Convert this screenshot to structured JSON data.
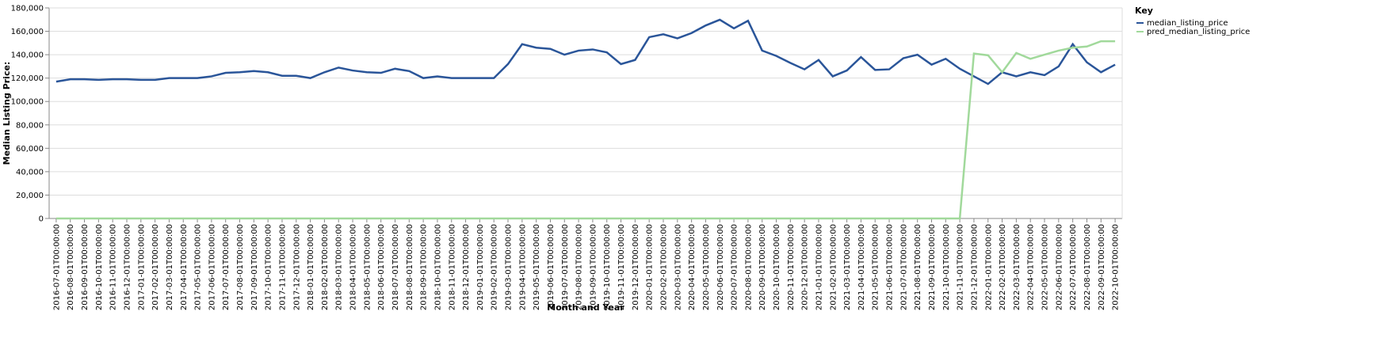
{
  "chart_data": {
    "type": "line",
    "x_label": "Month and Year",
    "y_label": "Median Listing Price:",
    "legend_title": "Key",
    "categories": [
      "2016-07-01T00:00:00",
      "2016-08-01T00:00:00",
      "2016-09-01T00:00:00",
      "2016-10-01T00:00:00",
      "2016-11-01T00:00:00",
      "2016-12-01T00:00:00",
      "2017-01-01T00:00:00",
      "2017-02-01T00:00:00",
      "2017-03-01T00:00:00",
      "2017-04-01T00:00:00",
      "2017-05-01T00:00:00",
      "2017-06-01T00:00:00",
      "2017-07-01T00:00:00",
      "2017-08-01T00:00:00",
      "2017-09-01T00:00:00",
      "2017-10-01T00:00:00",
      "2017-11-01T00:00:00",
      "2017-12-01T00:00:00",
      "2018-01-01T00:00:00",
      "2018-02-01T00:00:00",
      "2018-03-01T00:00:00",
      "2018-04-01T00:00:00",
      "2018-05-01T00:00:00",
      "2018-06-01T00:00:00",
      "2018-07-01T00:00:00",
      "2018-08-01T00:00:00",
      "2018-09-01T00:00:00",
      "2018-10-01T00:00:00",
      "2018-11-01T00:00:00",
      "2018-12-01T00:00:00",
      "2019-01-01T00:00:00",
      "2019-02-01T00:00:00",
      "2019-03-01T00:00:00",
      "2019-04-01T00:00:00",
      "2019-05-01T00:00:00",
      "2019-06-01T00:00:00",
      "2019-07-01T00:00:00",
      "2019-08-01T00:00:00",
      "2019-09-01T00:00:00",
      "2019-10-01T00:00:00",
      "2019-11-01T00:00:00",
      "2019-12-01T00:00:00",
      "2020-01-01T00:00:00",
      "2020-02-01T00:00:00",
      "2020-03-01T00:00:00",
      "2020-04-01T00:00:00",
      "2020-05-01T00:00:00",
      "2020-06-01T00:00:00",
      "2020-07-01T00:00:00",
      "2020-08-01T00:00:00",
      "2020-09-01T00:00:00",
      "2020-10-01T00:00:00",
      "2020-11-01T00:00:00",
      "2020-12-01T00:00:00",
      "2021-01-01T00:00:00",
      "2021-02-01T00:00:00",
      "2021-03-01T00:00:00",
      "2021-04-01T00:00:00",
      "2021-05-01T00:00:00",
      "2021-06-01T00:00:00",
      "2021-07-01T00:00:00",
      "2021-08-01T00:00:00",
      "2021-09-01T00:00:00",
      "2021-10-01T00:00:00",
      "2021-11-01T00:00:00",
      "2021-12-01T00:00:00",
      "2022-01-01T00:00:00",
      "2022-02-01T00:00:00",
      "2022-03-01T00:00:00",
      "2022-04-01T00:00:00",
      "2022-05-01T00:00:00",
      "2022-06-01T00:00:00",
      "2022-07-01T00:00:00",
      "2022-08-01T00:00:00",
      "2022-09-01T00:00:00",
      "2022-10-01T00:00:00"
    ],
    "series": [
      {
        "name": "median_listing_price",
        "color": "#2a5599",
        "values": [
          117000,
          119000,
          119000,
          118500,
          119000,
          119000,
          118500,
          118500,
          120000,
          120000,
          120000,
          121500,
          124500,
          125000,
          126000,
          125000,
          122000,
          122000,
          120000,
          125000,
          129000,
          126500,
          125000,
          124500,
          128000,
          126000,
          120000,
          121500,
          120000,
          120000,
          120000,
          120000,
          132000,
          149000,
          146000,
          145000,
          140000,
          143500,
          144500,
          142000,
          132000,
          135500,
          155000,
          157500,
          154000,
          158500,
          165000,
          169900,
          162500,
          169000,
          143500,
          139000,
          133000,
          127500,
          135500,
          121500,
          126500,
          138000,
          127000,
          127500,
          137000,
          140000,
          131500,
          136500,
          128000,
          121500,
          115000,
          125000,
          121500,
          125000,
          122500,
          130000,
          149000,
          133500,
          125000,
          131500
        ]
      },
      {
        "name": "pred_median_listing_price",
        "color": "#a1d99b",
        "values": [
          0,
          0,
          0,
          0,
          0,
          0,
          0,
          0,
          0,
          0,
          0,
          0,
          0,
          0,
          0,
          0,
          0,
          0,
          0,
          0,
          0,
          0,
          0,
          0,
          0,
          0,
          0,
          0,
          0,
          0,
          0,
          0,
          0,
          0,
          0,
          0,
          0,
          0,
          0,
          0,
          0,
          0,
          0,
          0,
          0,
          0,
          0,
          0,
          0,
          0,
          0,
          0,
          0,
          0,
          0,
          0,
          0,
          0,
          0,
          0,
          0,
          0,
          0,
          0,
          0,
          141000,
          139500,
          125000,
          141500,
          136500,
          140000,
          143500,
          146000,
          147000,
          151500,
          151500
        ]
      }
    ],
    "ylim": [
      0,
      180000
    ],
    "yticks": [
      0,
      {
        "value": 20000,
        "label": "20,000"
      },
      {
        "value": 40000,
        "label": "40,000"
      },
      {
        "value": 60000,
        "label": "60,000"
      },
      {
        "value": 80000,
        "label": "80,000"
      },
      {
        "value": 100000,
        "label": "100,000"
      },
      {
        "value": 120000,
        "label": "120,000"
      },
      {
        "value": 140000,
        "label": "140,000"
      },
      {
        "value": 160000,
        "label": "160,000"
      },
      {
        "value": 180000,
        "label": "180,000"
      }
    ],
    "grid": true
  }
}
